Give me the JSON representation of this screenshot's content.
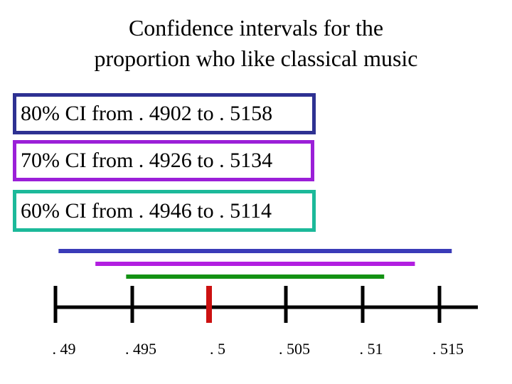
{
  "title": {
    "line1": "Confidence intervals for the",
    "line2": "proportion who like classical music"
  },
  "intervals": [
    {
      "label": "80% CI from . 4902 to . 5158",
      "level": "80%",
      "lower": 0.4902,
      "upper": 0.5158,
      "color": "#2e3192"
    },
    {
      "label": "70% CI from . 4926 to . 5134",
      "level": "70%",
      "lower": 0.4926,
      "upper": 0.5134,
      "color": "#9b1fd8"
    },
    {
      "label": "60% CI from . 4946 to . 5114",
      "level": "60%",
      "lower": 0.4946,
      "upper": 0.5114,
      "color": "#1cb99a"
    }
  ],
  "bar_colors": [
    "#3a3bb8",
    "#b21ee0",
    "#139213"
  ],
  "axis": {
    "ticks": [
      {
        "value": 0.49,
        "label": ". 49"
      },
      {
        "value": 0.495,
        "label": ". 495"
      },
      {
        "value": 0.5,
        "label": ". 5"
      },
      {
        "value": 0.505,
        "label": ". 505"
      },
      {
        "value": 0.51,
        "label": ". 51"
      },
      {
        "value": 0.515,
        "label": ". 515"
      }
    ],
    "center_value": 0.5,
    "center_color": "#cc1111",
    "line_color": "#000000"
  }
}
